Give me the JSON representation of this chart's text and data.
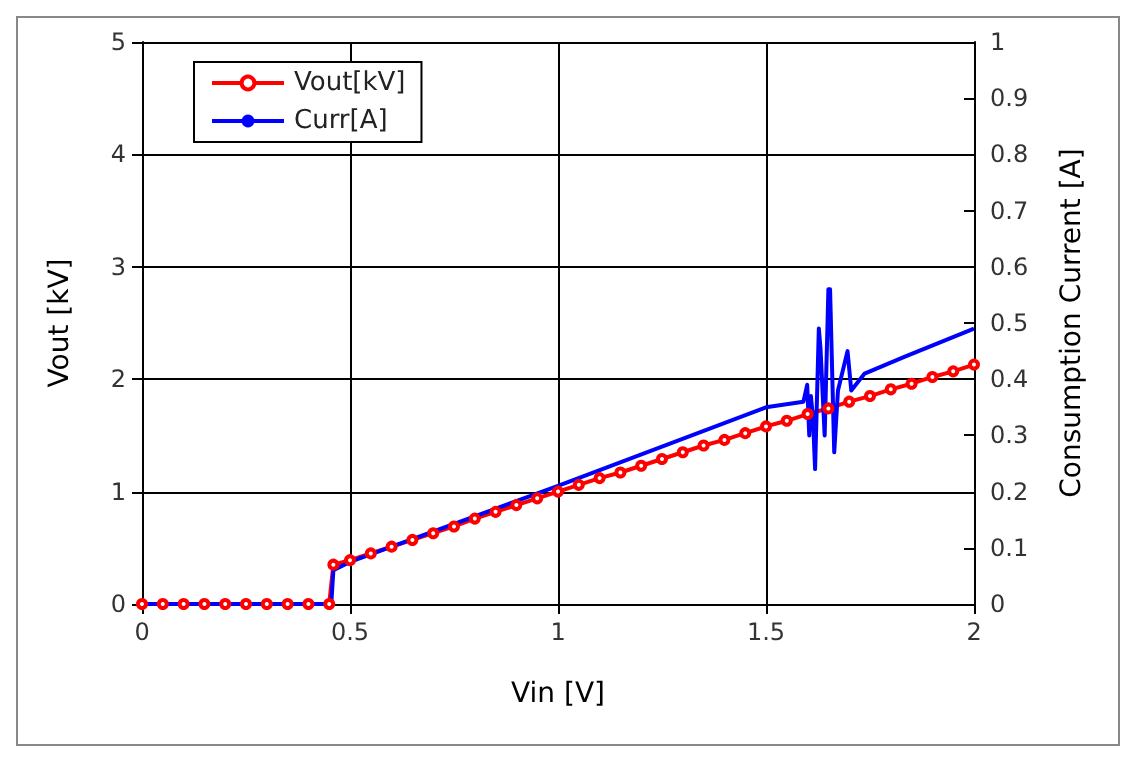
{
  "chart_data": {
    "type": "line",
    "xlabel": "Vin [V]",
    "ylabel": "Vout [kV]",
    "y2label": "Consumption Current [A]",
    "xlim": [
      0,
      2
    ],
    "xticks": [
      0,
      0.5,
      1,
      1.5,
      2
    ],
    "ylim": [
      0,
      5
    ],
    "yticks": [
      0,
      1,
      2,
      3,
      4,
      5
    ],
    "y2lim": [
      0,
      1
    ],
    "y2ticks": [
      0,
      0.1,
      0.2,
      0.3,
      0.4,
      0.5,
      0.6,
      0.7,
      0.8,
      0.9,
      1
    ],
    "grid": true,
    "legend": "top left",
    "series": [
      {
        "name": "Vout[kV]",
        "color": "#ff0000",
        "marker": "circle",
        "x": [
          0,
          0.05,
          0.1,
          0.15,
          0.2,
          0.25,
          0.3,
          0.35,
          0.4,
          0.45,
          0.46,
          0.5,
          0.55,
          0.6,
          0.65,
          0.7,
          0.75,
          0.8,
          0.85,
          0.9,
          0.95,
          1.0,
          1.05,
          1.1,
          1.15,
          1.2,
          1.25,
          1.3,
          1.35,
          1.4,
          1.45,
          1.5,
          1.55,
          1.6,
          1.65,
          1.7,
          1.75,
          1.8,
          1.85,
          1.9,
          1.95,
          2.0
        ],
        "values": [
          0,
          0,
          0,
          0,
          0,
          0,
          0,
          0,
          0,
          0,
          0.35,
          0.39,
          0.45,
          0.51,
          0.57,
          0.63,
          0.69,
          0.76,
          0.82,
          0.88,
          0.94,
          1.0,
          1.06,
          1.12,
          1.17,
          1.23,
          1.29,
          1.35,
          1.41,
          1.46,
          1.52,
          1.58,
          1.63,
          1.69,
          1.74,
          1.8,
          1.85,
          1.91,
          1.96,
          2.02,
          2.07,
          2.13
        ]
      },
      {
        "name": "Curr[A]",
        "color": "#0000ff",
        "axis": "y2",
        "marker": "none",
        "x": [
          0,
          0.455,
          0.46,
          0.5,
          1.0,
          1.5,
          1.59,
          1.599,
          1.604,
          1.608,
          1.613,
          1.618,
          1.627,
          1.631,
          1.641,
          1.65,
          1.654,
          1.664,
          1.673,
          1.696,
          1.705,
          1.737,
          1.834,
          2.0
        ],
        "values": [
          0,
          0,
          0.06,
          0.075,
          0.21,
          0.35,
          0.36,
          0.39,
          0.3,
          0.37,
          0.33,
          0.24,
          0.49,
          0.455,
          0.3,
          0.56,
          0.56,
          0.27,
          0.38,
          0.45,
          0.38,
          0.41,
          0.44,
          0.49
        ]
      }
    ]
  }
}
